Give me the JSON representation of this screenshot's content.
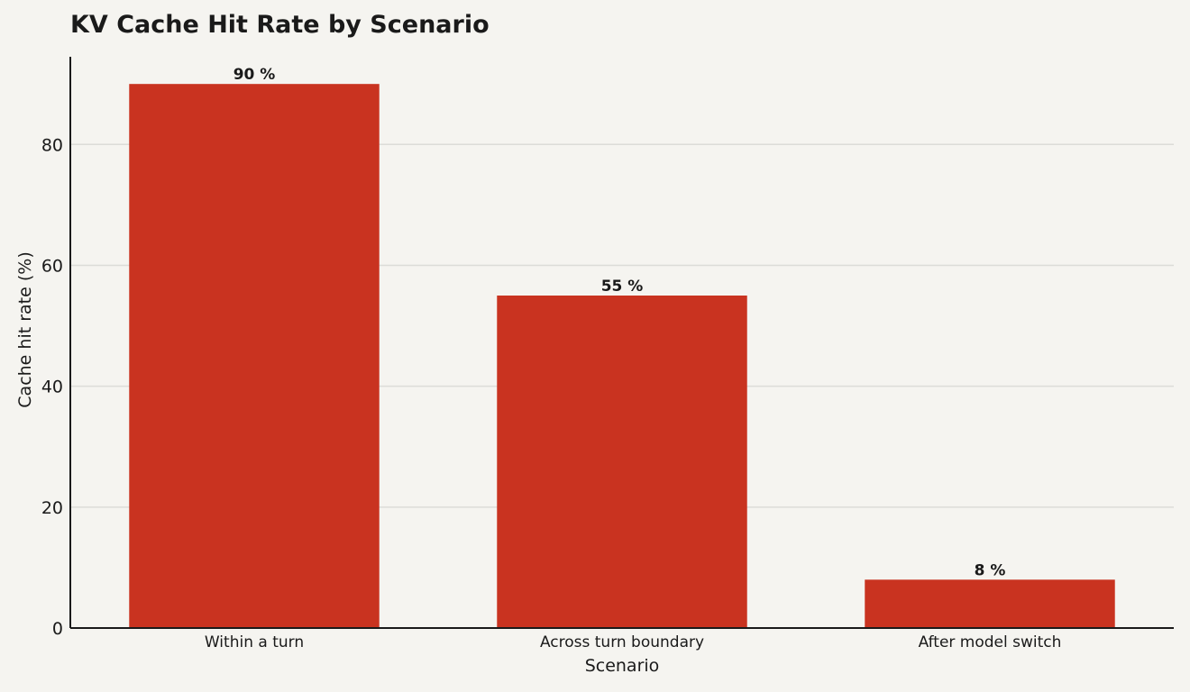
{
  "chart_data": {
    "type": "bar",
    "title": "KV Cache Hit Rate by Scenario",
    "xlabel": "Scenario",
    "ylabel": "Cache hit rate (%)",
    "categories": [
      "Within a turn",
      "Across turn boundary",
      "After model switch"
    ],
    "values": [
      90,
      55,
      8
    ],
    "value_labels": [
      "90 %",
      "55 %",
      "8 %"
    ],
    "yticks": [
      0,
      20,
      40,
      60,
      80
    ],
    "ylim": [
      0,
      94.5
    ],
    "grid": "horizontal",
    "legend": "none",
    "colors": {
      "bar": "#c93320",
      "grid": "#dcdcd8",
      "axis": "#1a1a1a",
      "background": "#f5f4f0"
    }
  }
}
